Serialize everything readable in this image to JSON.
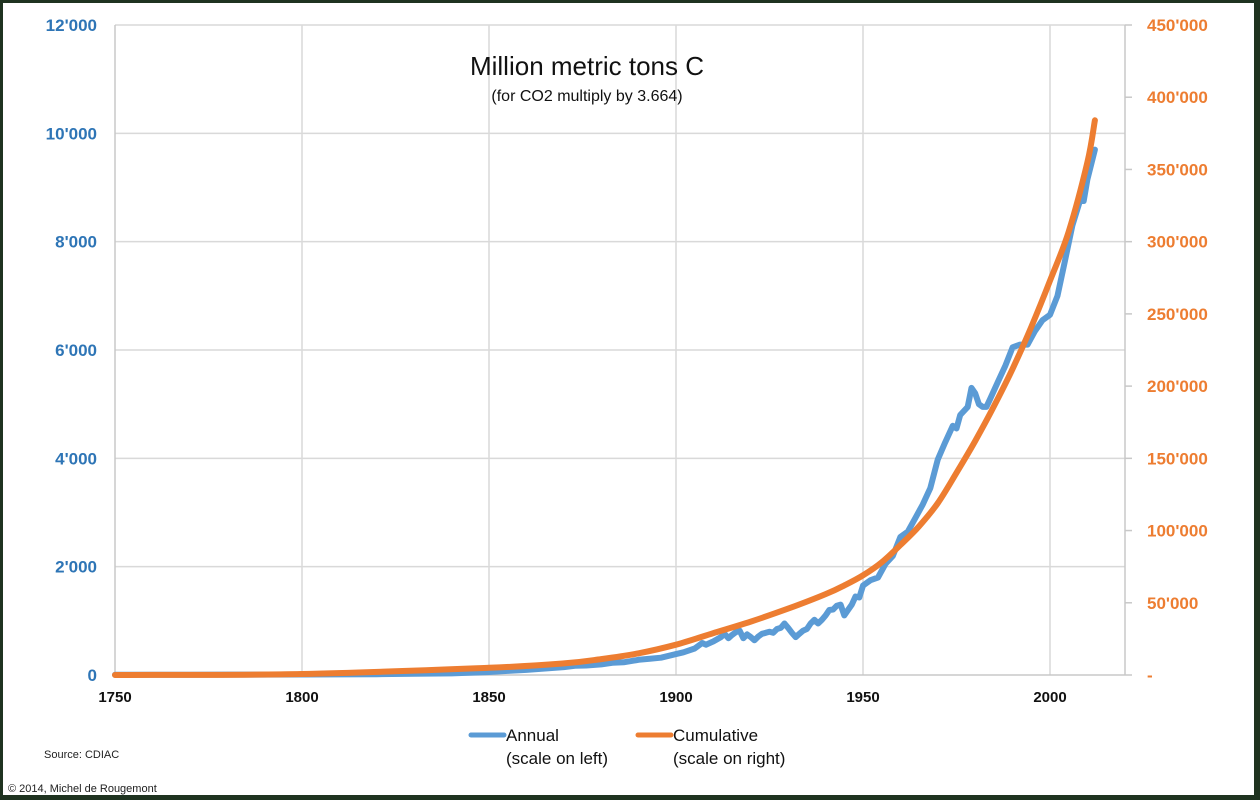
{
  "chart_data": {
    "type": "line",
    "title": "Million metric tons C",
    "subtitle": "(for CO2 multiply by 3.664)",
    "xlabel": "",
    "ylabel_left": "",
    "ylabel_right": "",
    "xlim": [
      1750,
      2015
    ],
    "ylim_left": [
      0,
      12000
    ],
    "ylim_right": [
      0,
      450000
    ],
    "x_ticks": [
      1750,
      1800,
      1850,
      1900,
      1950,
      2000
    ],
    "x_tick_labels": [
      "1750",
      "1800",
      "1850",
      "1900",
      "1950",
      "2000"
    ],
    "y_left_ticks": [
      0,
      2000,
      4000,
      6000,
      8000,
      10000,
      12000
    ],
    "y_left_tick_labels": [
      "0",
      "2'000",
      "4'000",
      "6'000",
      "8'000",
      "10'000",
      "12'000"
    ],
    "y_right_ticks": [
      0,
      50000,
      100000,
      150000,
      200000,
      250000,
      300000,
      350000,
      400000,
      450000
    ],
    "y_right_tick_labels": [
      "-",
      "50'000",
      "100'000",
      "150'000",
      "200'000",
      "250'000",
      "300'000",
      "350'000",
      "400'000",
      "450'000"
    ],
    "grid": true,
    "legend_position": "bottom",
    "series": [
      {
        "name": "Annual",
        "legend_line2": "(scale on left)",
        "axis": "left",
        "color": "#5b9bd5",
        "x": [
          1750,
          1760,
          1770,
          1780,
          1790,
          1800,
          1810,
          1820,
          1830,
          1840,
          1850,
          1855,
          1860,
          1865,
          1870,
          1873,
          1876,
          1880,
          1883,
          1886,
          1890,
          1893,
          1896,
          1900,
          1902,
          1905,
          1907,
          1908,
          1910,
          1912,
          1913,
          1914,
          1915,
          1916,
          1917,
          1918,
          1919,
          1920,
          1921,
          1922,
          1923,
          1924,
          1925,
          1926,
          1927,
          1928,
          1929,
          1930,
          1931,
          1932,
          1933,
          1934,
          1935,
          1936,
          1937,
          1938,
          1939,
          1940,
          1941,
          1942,
          1943,
          1944,
          1945,
          1946,
          1947,
          1948,
          1949,
          1950,
          1952,
          1954,
          1956,
          1958,
          1960,
          1962,
          1964,
          1966,
          1968,
          1970,
          1972,
          1974,
          1975,
          1976,
          1978,
          1979,
          1980,
          1981,
          1982,
          1983,
          1984,
          1986,
          1988,
          1990,
          1992,
          1994,
          1996,
          1998,
          2000,
          2002,
          2004,
          2006,
          2008,
          2009,
          2010,
          2012
        ],
        "values": [
          3,
          4,
          5,
          7,
          8,
          10,
          12,
          15,
          22,
          30,
          55,
          75,
          95,
          120,
          145,
          170,
          175,
          195,
          225,
          235,
          280,
          300,
          320,
          385,
          420,
          490,
          590,
          560,
          620,
          700,
          760,
          680,
          740,
          790,
          820,
          680,
          750,
          700,
          640,
          710,
          760,
          780,
          800,
          780,
          850,
          870,
          950,
          870,
          780,
          700,
          760,
          820,
          850,
          950,
          1020,
          950,
          1020,
          1100,
          1200,
          1210,
          1280,
          1300,
          1100,
          1200,
          1300,
          1450,
          1430,
          1650,
          1750,
          1800,
          2050,
          2200,
          2550,
          2650,
          2900,
          3150,
          3450,
          3980,
          4300,
          4600,
          4550,
          4800,
          4950,
          5300,
          5200,
          5000,
          4950,
          4950,
          5100,
          5400,
          5700,
          6050,
          6100,
          6100,
          6350,
          6550,
          6650,
          7000,
          7650,
          8300,
          8750,
          8750,
          9150,
          9700
        ]
      },
      {
        "name": "Cumulative",
        "legend_line2": "(scale on right)",
        "axis": "right",
        "color": "#ed7d31",
        "x": [
          1750,
          1800,
          1850,
          1870,
          1880,
          1890,
          1900,
          1910,
          1920,
          1930,
          1940,
          1945,
          1950,
          1955,
          1960,
          1965,
          1970,
          1975,
          1980,
          1985,
          1990,
          1995,
          2000,
          2005,
          2010,
          2012
        ],
        "values": [
          0,
          700,
          5000,
          8000,
          11000,
          15000,
          21000,
          29000,
          37000,
          46000,
          56000,
          62000,
          69000,
          78000,
          90000,
          103000,
          119000,
          140000,
          162000,
          186000,
          212000,
          241000,
          273000,
          307000,
          355000,
          384000
        ]
      }
    ]
  },
  "notes": {
    "source": "Source: CDIAC",
    "copyright": "© 2014, Michel de Rougemont"
  }
}
